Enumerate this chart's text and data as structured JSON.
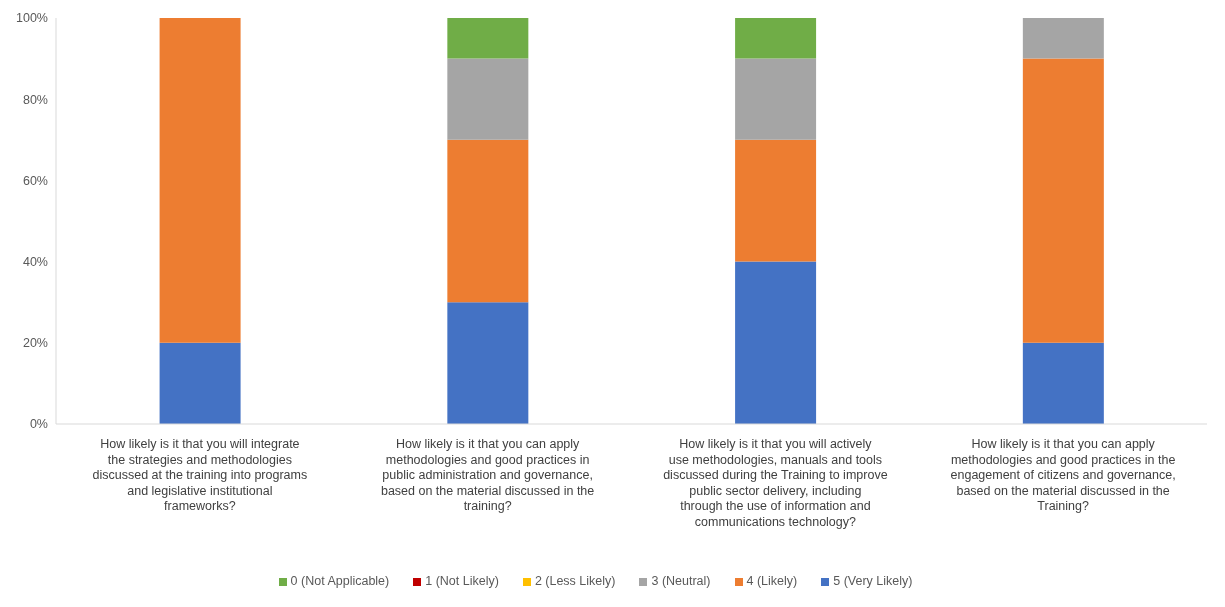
{
  "chart_data": {
    "type": "bar",
    "stacked": true,
    "categories": [
      "How likely is it that you will integrate the strategies and methodologies discussed at the training into programs and legislative institutional frameworks?",
      "How likely is it that you can apply methodologies and good practices in public administration and governance, based on the material discussed in the training?",
      "How likely is it that you will actively use methodologies, manuals and tools discussed during the Training to improve public sector delivery, including through the use of information and communications technology?",
      "How likely is it that you can apply methodologies and good practices in the engagement of citizens and governance, based on the material discussed in the Training?"
    ],
    "series": [
      {
        "name": "5 (Very Likely)",
        "color": "#4472c4",
        "values": [
          20,
          30,
          40,
          20
        ]
      },
      {
        "name": "4 (Likely)",
        "color": "#ed7d31",
        "values": [
          80,
          40,
          30,
          70
        ]
      },
      {
        "name": "3 (Neutral)",
        "color": "#a5a5a5",
        "values": [
          0,
          20,
          20,
          10
        ]
      },
      {
        "name": "2 (Less Likely)",
        "color": "#ffc000",
        "values": [
          0,
          0,
          0,
          0
        ]
      },
      {
        "name": "1 (Not Likely)",
        "color": "#c00000",
        "values": [
          0,
          0,
          0,
          0
        ]
      },
      {
        "name": "0 (Not Applicable)",
        "color": "#70ad47",
        "values": [
          0,
          10,
          10,
          0
        ]
      }
    ],
    "ylim": [
      0,
      100
    ],
    "yticks": [
      {
        "value": 0,
        "label": "0%"
      },
      {
        "value": 20,
        "label": "20%"
      },
      {
        "value": 40,
        "label": "40%"
      },
      {
        "value": 60,
        "label": "60%"
      },
      {
        "value": 80,
        "label": "80%"
      },
      {
        "value": 100,
        "label": "100%"
      }
    ],
    "grid": false,
    "legend": "bottom"
  }
}
